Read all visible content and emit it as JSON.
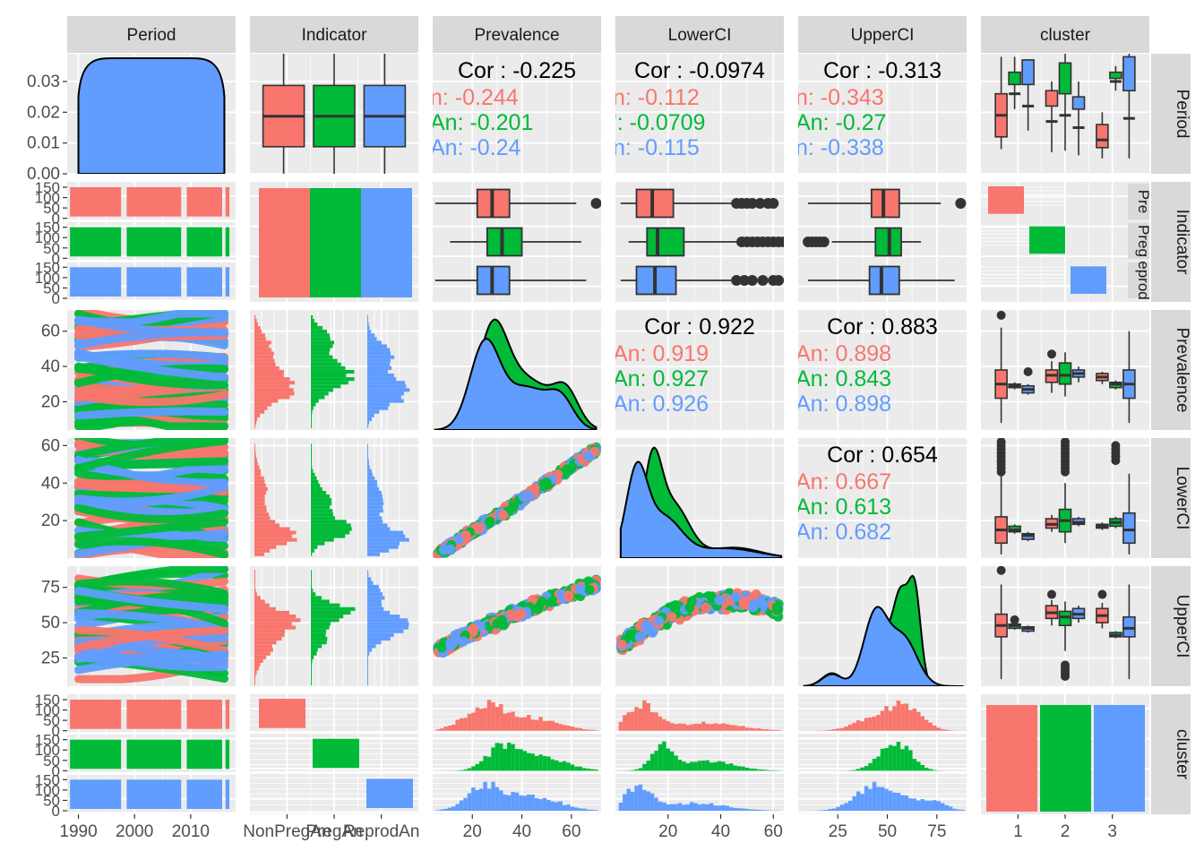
{
  "chart_data": {
    "type": "scatterplot-matrix",
    "variables": [
      "Period",
      "Indicator",
      "Prevalence",
      "LowerCI",
      "UpperCI",
      "cluster"
    ],
    "groups": [
      "NonPregAn",
      "PregAn",
      "ReprodAn"
    ],
    "group_abbrev": [
      "n:",
      "An:",
      "An:"
    ],
    "group_colors": [
      "#F8766D",
      "#00BA38",
      "#619CFF"
    ],
    "correlations": [
      {
        "row": "Period",
        "col": "Prevalence",
        "overall": "Cor : -0.225",
        "groups": [
          "n: -0.244",
          "An: -0.201",
          "An: -0.24"
        ]
      },
      {
        "row": "Period",
        "col": "LowerCI",
        "overall": "Cor : -0.0974",
        "groups": [
          "n: -0.112",
          "': -0.0709",
          "n: -0.115"
        ]
      },
      {
        "row": "Period",
        "col": "UpperCI",
        "overall": "Cor : -0.313",
        "groups": [
          "n: -0.343",
          "An: -0.27",
          "n: -0.338"
        ]
      },
      {
        "row": "Prevalence",
        "col": "LowerCI",
        "overall": "Cor : 0.922",
        "groups": [
          "An: 0.919",
          "An: 0.927",
          "An: 0.926"
        ]
      },
      {
        "row": "Prevalence",
        "col": "UpperCI",
        "overall": "Cor : 0.883",
        "groups": [
          "An: 0.898",
          "An: 0.843",
          "An: 0.898"
        ]
      },
      {
        "row": "LowerCI",
        "col": "UpperCI",
        "overall": "Cor : 0.654",
        "groups": [
          "An: 0.667",
          "An: 0.613",
          "An: 0.682"
        ]
      }
    ],
    "boxplots_by_indicator": {
      "Prevalence": [
        {
          "group": "NonPregAn",
          "min": 5,
          "q1": 22,
          "median": 28,
          "q3": 35,
          "max": 62,
          "outliers": [
            70
          ]
        },
        {
          "group": "PregAn",
          "min": 11,
          "q1": 26,
          "median": 32,
          "q3": 40,
          "max": 64,
          "outliers": []
        },
        {
          "group": "ReprodAn",
          "min": 5,
          "q1": 22,
          "median": 28,
          "q3": 35,
          "max": 66,
          "outliers": []
        }
      ],
      "LowerCI": [
        {
          "group": "NonPregAn",
          "min": 2,
          "q1": 8,
          "median": 14,
          "q3": 22,
          "max": 44,
          "outliers": [
            46,
            48,
            50,
            52,
            55,
            58,
            60
          ]
        },
        {
          "group": "PregAn",
          "min": 5,
          "q1": 12,
          "median": 16,
          "q3": 26,
          "max": 46,
          "outliers": [
            48,
            50,
            52,
            54,
            56,
            58,
            60,
            62,
            64
          ]
        },
        {
          "group": "ReprodAn",
          "min": 2,
          "q1": 8,
          "median": 15,
          "q3": 23,
          "max": 44,
          "outliers": [
            46,
            49,
            52,
            56,
            60,
            62
          ]
        }
      ],
      "UpperCI": [
        {
          "group": "NonPregAn",
          "min": 10,
          "q1": 42,
          "median": 48,
          "q3": 56,
          "max": 77,
          "outliers": [
            87
          ]
        },
        {
          "group": "PregAn",
          "min": 22,
          "q1": 44,
          "median": 51,
          "q3": 57,
          "max": 67,
          "outliers": [
            10,
            12,
            14,
            16,
            18
          ]
        },
        {
          "group": "ReprodAn",
          "min": 10,
          "q1": 41,
          "median": 47,
          "q3": 56,
          "max": 84,
          "outliers": []
        }
      ]
    },
    "axes": {
      "Period": {
        "range": [
          1988,
          2018
        ],
        "ticks": [
          "1990",
          "2000",
          "2010"
        ],
        "values": [
          1990,
          2000,
          2010
        ]
      },
      "Indicator": {
        "ticks": [
          "NonPregAn",
          "PregAn",
          "ReprodAn"
        ]
      },
      "Prevalence": {
        "range": [
          4,
          72
        ],
        "ticks": [
          "20",
          "40",
          "60"
        ],
        "values": [
          20,
          40,
          60
        ]
      },
      "LowerCI": {
        "range": [
          0,
          64
        ],
        "ticks": [
          "20",
          "40",
          "60"
        ],
        "values": [
          20,
          40,
          60
        ]
      },
      "UpperCI": {
        "range": [
          5,
          90
        ],
        "ticks": [
          "25",
          "50",
          "75"
        ],
        "values": [
          25,
          50,
          75
        ]
      },
      "cluster": {
        "ticks": [
          "1",
          "2",
          "3"
        ]
      }
    },
    "row_axes": {
      "Period": {
        "range": [
          0,
          0.039
        ],
        "ticks": [
          "0.00",
          "0.01",
          "0.02",
          "0.03"
        ],
        "values": [
          0,
          0.01,
          0.02,
          0.03
        ]
      },
      "Indicator": {
        "ticks": [
          "150",
          "100",
          "50",
          "0"
        ]
      },
      "Prevalence": {
        "range": [
          4,
          72
        ],
        "ticks": [
          "20",
          "40",
          "60"
        ],
        "values": [
          20,
          40,
          60
        ]
      },
      "LowerCI": {
        "range": [
          0,
          64
        ],
        "ticks": [
          "20",
          "40",
          "60"
        ],
        "values": [
          20,
          40,
          60
        ]
      },
      "UpperCI": {
        "range": [
          5,
          90
        ],
        "ticks": [
          "25",
          "50",
          "75"
        ],
        "values": [
          25,
          50,
          75
        ]
      },
      "cluster": {
        "ticks": [
          "150",
          "100",
          "50",
          "0"
        ]
      }
    },
    "strip_labels_right": [
      "Period",
      "Indicator",
      "Prevalence",
      "LowerCI",
      "UpperCI",
      "cluster"
    ],
    "indicator_strip_partial": [
      "Pre",
      "Preg",
      "eprod"
    ]
  }
}
